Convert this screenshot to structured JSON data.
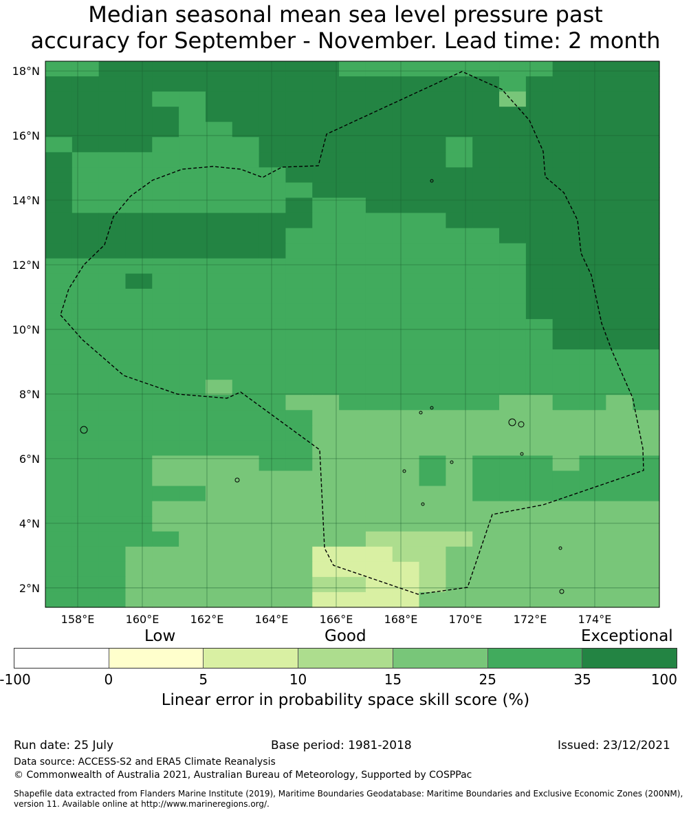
{
  "title": {
    "line1": "Median seasonal mean sea level pressure past",
    "line2": "accuracy for September - November. Lead time: 2 month"
  },
  "map": {
    "lat_labels": [
      "18°N",
      "16°N",
      "14°N",
      "12°N",
      "10°N",
      "8°N",
      "6°N",
      "4°N",
      "2°N"
    ],
    "lon_labels": [
      "158°E",
      "160°E",
      "162°E",
      "164°E",
      "166°E",
      "168°E",
      "170°E",
      "172°E",
      "174°E"
    ],
    "lat_values": [
      18,
      16,
      14,
      12,
      10,
      8,
      6,
      4,
      2
    ],
    "lon_values": [
      158,
      160,
      162,
      164,
      166,
      168,
      170,
      172,
      174
    ],
    "extent": {
      "lon_min": 157,
      "lon_max": 176,
      "lat_min": 1.4,
      "lat_max": 18.3
    },
    "grid": "on",
    "boundary": "dashed EEZ outline",
    "colors": {
      "c1": "#ffffcc",
      "c2": "#d9f0a3",
      "c3": "#addd8e",
      "c4": "#78c679",
      "c5": "#41ab5d",
      "c6": "#238443"
    }
  },
  "legend": {
    "categories": {
      "low": "Low",
      "good": "Good",
      "exceptional": "Exceptional"
    },
    "ticks": [
      "-100",
      "0",
      "5",
      "10",
      "15",
      "25",
      "35",
      "100"
    ],
    "segment_colors": [
      "#ffffff",
      "#ffffcc",
      "#d9f0a3",
      "#addd8e",
      "#78c679",
      "#41ab5d",
      "#238443"
    ],
    "title": "Linear error in probability space skill score (%)"
  },
  "footer": {
    "run_date": "Run date: 25 July",
    "base_period": "Base period: 1981-2018",
    "issued": "Issued: 23/12/2021",
    "data_source": "Data source: ACCESS-S2 and ERA5 Climate Reanalysis",
    "copyright": "© Commonwealth of Australia 2021, Australian Bureau of Meteorology, Supported by COSPPac",
    "shapefile_line1": "Shapefile data extracted from Flanders Marine Institute (2019), Maritime Boundaries Geodatabase: Maritime Boundaries and Exclusive Economic Zones (200NM),",
    "shapefile_line2": "version 11. Available online at http://www.marineregions.org/."
  }
}
